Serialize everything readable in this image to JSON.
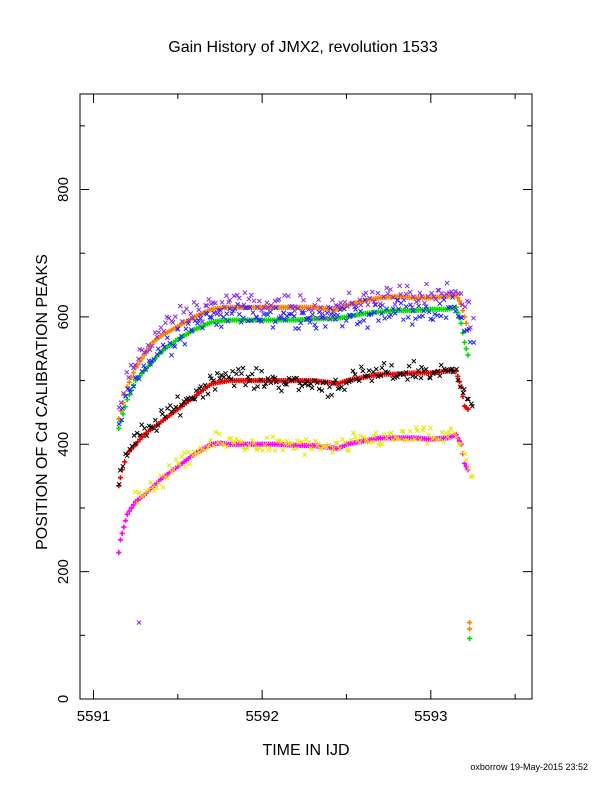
{
  "chart_data": {
    "type": "scatter",
    "title": "Gain History of JMX2, revolution 1533",
    "xlabel": "TIME IN IJD",
    "ylabel": "POSITION OF Cd CALIBRATION PEAKS",
    "xlim": [
      5590.92,
      5593.6
    ],
    "ylim": [
      0,
      950
    ],
    "x_ticks": [
      5591,
      5592,
      5593
    ],
    "y_ticks": [
      0,
      200,
      400,
      600,
      800
    ],
    "grid": false,
    "legend": "none",
    "credit": "oxborrow 19-May-2015 23:52",
    "series": [
      {
        "color": "#ff8000",
        "marker": "plus",
        "noise": 0,
        "x": [
          5591.15,
          5591.2,
          5591.25,
          5591.3,
          5591.35,
          5591.4,
          5591.5,
          5591.6,
          5591.7,
          5591.8,
          5591.9,
          5592.0,
          5592.1,
          5592.2,
          5592.3,
          5592.4,
          5592.45,
          5592.5,
          5592.6,
          5592.7,
          5592.8,
          5592.9,
          5593.0,
          5593.1,
          5593.15,
          5593.18,
          5593.2,
          5593.22,
          5593.23,
          5593.23
        ],
        "y": [
          440,
          490,
          520,
          540,
          560,
          570,
          585,
          600,
          612,
          615,
          615,
          615,
          615,
          615,
          615,
          612,
          612,
          618,
          625,
          630,
          632,
          630,
          630,
          632,
          635,
          620,
          600,
          580,
          120,
          110
        ]
      },
      {
        "color": "#00dd00",
        "marker": "plus",
        "noise": 0,
        "x": [
          5591.15,
          5591.2,
          5591.25,
          5591.3,
          5591.35,
          5591.4,
          5591.5,
          5591.6,
          5591.7,
          5591.8,
          5591.9,
          5592.0,
          5592.1,
          5592.2,
          5592.3,
          5592.4,
          5592.45,
          5592.5,
          5592.6,
          5592.7,
          5592.8,
          5592.9,
          5593.0,
          5593.1,
          5593.15,
          5593.18,
          5593.2,
          5593.22,
          5593.23
        ],
        "y": [
          425,
          470,
          500,
          515,
          530,
          545,
          565,
          580,
          592,
          595,
          595,
          595,
          595,
          595,
          597,
          597,
          598,
          600,
          605,
          608,
          610,
          610,
          612,
          612,
          615,
          590,
          560,
          540,
          95
        ]
      },
      {
        "color": "#ee0000",
        "marker": "plus",
        "noise": 0,
        "x": [
          5591.15,
          5591.17,
          5591.2,
          5591.25,
          5591.3,
          5591.35,
          5591.4,
          5591.5,
          5591.6,
          5591.7,
          5591.8,
          5591.9,
          5592.0,
          5592.1,
          5592.2,
          5592.3,
          5592.4,
          5592.45,
          5592.5,
          5592.6,
          5592.7,
          5592.8,
          5592.9,
          5593.0,
          5593.1,
          5593.15,
          5593.18,
          5593.2,
          5593.22
        ],
        "y": [
          335,
          360,
          385,
          400,
          415,
          425,
          435,
          455,
          475,
          495,
          500,
          500,
          500,
          500,
          500,
          500,
          497,
          495,
          500,
          505,
          510,
          510,
          512,
          512,
          515,
          515,
          490,
          460,
          455
        ]
      },
      {
        "color": "#ff00ff",
        "marker": "plus",
        "noise": 0,
        "x": [
          5591.15,
          5591.16,
          5591.18,
          5591.2,
          5591.25,
          5591.3,
          5591.4,
          5591.5,
          5591.6,
          5591.7,
          5591.75,
          5591.8,
          5591.9,
          5592.0,
          5592.1,
          5592.2,
          5592.3,
          5592.4,
          5592.45,
          5592.5,
          5592.6,
          5592.7,
          5592.8,
          5592.9,
          5593.0,
          5593.1,
          5593.15,
          5593.18,
          5593.2,
          5593.22
        ],
        "y": [
          230,
          250,
          270,
          290,
          310,
          320,
          345,
          365,
          385,
          400,
          402,
          400,
          400,
          400,
          400,
          398,
          398,
          395,
          393,
          400,
          405,
          410,
          410,
          410,
          408,
          410,
          415,
          400,
          370,
          360
        ]
      },
      {
        "color": "#8a2be2",
        "marker": "cross",
        "noise": 18,
        "x": [
          5591.15,
          5591.2,
          5591.25,
          5591.3,
          5591.35,
          5591.4,
          5591.5,
          5591.6,
          5591.7,
          5591.8,
          5591.9,
          5592.0,
          5592.1,
          5592.2,
          5592.3,
          5592.4,
          5592.5,
          5592.6,
          5592.7,
          5592.8,
          5592.9,
          5593.0,
          5593.1,
          5593.15,
          5593.2,
          5593.25
        ],
        "y": [
          450,
          495,
          530,
          550,
          565,
          580,
          595,
          610,
          615,
          622,
          620,
          618,
          620,
          615,
          615,
          615,
          620,
          628,
          632,
          635,
          630,
          630,
          635,
          640,
          620,
          600
        ]
      },
      {
        "color": "#2020ff",
        "marker": "cross",
        "noise": 18,
        "x": [
          5591.15,
          5591.2,
          5591.25,
          5591.3,
          5591.35,
          5591.4,
          5591.5,
          5591.6,
          5591.7,
          5591.8,
          5591.9,
          5592.0,
          5592.1,
          5592.2,
          5592.3,
          5592.4,
          5592.5,
          5592.6,
          5592.7,
          5592.8,
          5592.9,
          5593.0,
          5593.1,
          5593.15,
          5593.2,
          5593.25
        ],
        "y": [
          430,
          475,
          505,
          520,
          535,
          550,
          570,
          590,
          600,
          605,
          600,
          598,
          600,
          595,
          598,
          600,
          600,
          605,
          610,
          610,
          610,
          610,
          612,
          615,
          590,
          560
        ]
      },
      {
        "color": "#000000",
        "marker": "cross",
        "noise": 15,
        "x": [
          5591.15,
          5591.2,
          5591.25,
          5591.3,
          5591.35,
          5591.4,
          5591.5,
          5591.6,
          5591.7,
          5591.8,
          5591.9,
          5592.0,
          5592.1,
          5592.2,
          5592.3,
          5592.4,
          5592.5,
          5592.6,
          5592.7,
          5592.8,
          5592.9,
          5593.0,
          5593.1,
          5593.15,
          5593.2,
          5593.25
        ],
        "y": [
          345,
          390,
          405,
          420,
          430,
          440,
          460,
          480,
          500,
          510,
          505,
          500,
          500,
          495,
          495,
          490,
          498,
          505,
          510,
          512,
          515,
          512,
          515,
          518,
          490,
          460
        ]
      },
      {
        "color": "#e6e600",
        "marker": "cross",
        "noise": 14,
        "x": [
          5591.25,
          5591.3,
          5591.35,
          5591.4,
          5591.5,
          5591.6,
          5591.7,
          5591.8,
          5591.9,
          5592.0,
          5592.1,
          5592.2,
          5592.3,
          5592.4,
          5592.5,
          5592.6,
          5592.7,
          5592.8,
          5592.9,
          5593.0,
          5593.1,
          5593.15,
          5593.2,
          5593.25
        ],
        "y": [
          310,
          320,
          330,
          345,
          365,
          385,
          400,
          405,
          400,
          400,
          398,
          398,
          395,
          390,
          400,
          405,
          410,
          412,
          412,
          410,
          412,
          415,
          380,
          350
        ]
      },
      {
        "color": "#8a2be2",
        "marker": "cross",
        "noise": 0,
        "x": [
          5591.27
        ],
        "y": [
          120
        ]
      }
    ]
  }
}
